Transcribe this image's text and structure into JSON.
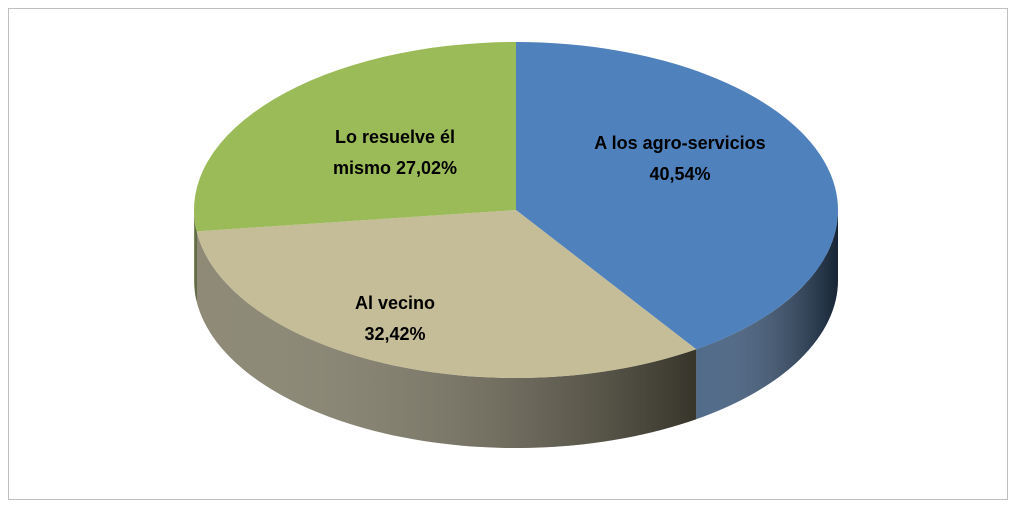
{
  "chart_data": {
    "type": "pie3d",
    "categories": [
      "A los agro-servicios",
      "Al vecino",
      "Lo resuelve él mismo"
    ],
    "values": [
      40.54,
      32.42,
      27.02
    ],
    "value_labels": [
      "40,54%",
      "32,42%",
      "27,02%"
    ],
    "colors": [
      "#4f81bd",
      "#c4bd97",
      "#9bbb59"
    ]
  }
}
